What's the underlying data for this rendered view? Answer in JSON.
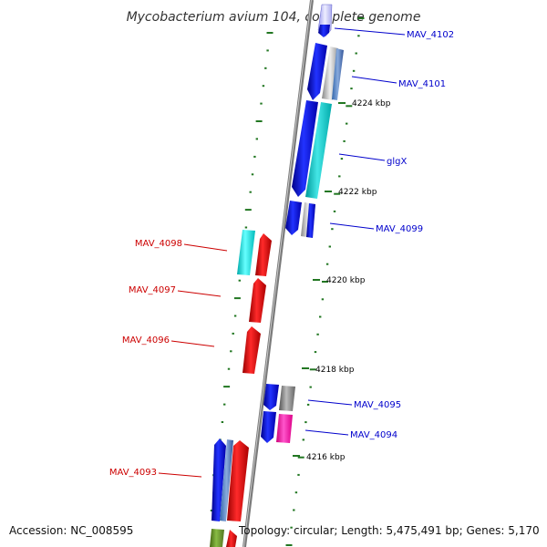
{
  "title": "Mycobacterium avium 104, complete genome",
  "footer": {
    "accession": "Accession: NC_008595",
    "summary": "Topology: circular; Length: 5,475,491 bp; Genes: 5,170"
  },
  "scale_labels": [
    "4224 kbp",
    "4222 kbp",
    "4220 kbp",
    "4218 kbp",
    "4216 kbp"
  ],
  "genes": [
    {
      "id": "MAV_4102",
      "strand": "forward",
      "color": "#0000cc"
    },
    {
      "id": "MAV_4101",
      "strand": "forward",
      "color": "#0000cc"
    },
    {
      "id": "glgX",
      "strand": "forward",
      "color": "#0000cc"
    },
    {
      "id": "MAV_4099",
      "strand": "forward",
      "color": "#0000cc"
    },
    {
      "id": "MAV_4098",
      "strand": "reverse",
      "color": "#cc0000"
    },
    {
      "id": "MAV_4097",
      "strand": "reverse",
      "color": "#cc0000"
    },
    {
      "id": "MAV_4096",
      "strand": "reverse",
      "color": "#cc0000"
    },
    {
      "id": "MAV_4095",
      "strand": "forward",
      "color": "#0000cc"
    },
    {
      "id": "MAV_4094",
      "strand": "forward",
      "color": "#0000cc"
    },
    {
      "id": "MAV_4093",
      "strand": "reverse",
      "color": "#cc0000"
    }
  ],
  "colors": {
    "forward_gene": "#0a14e6",
    "reverse_gene": "#ee1111",
    "cyan": "#22dddd",
    "teal": "#22cccc",
    "grey": "#888888",
    "magenta": "#ff22aa",
    "olive": "#669933",
    "tick": "#227722",
    "backbone": "#8a8a8a"
  }
}
